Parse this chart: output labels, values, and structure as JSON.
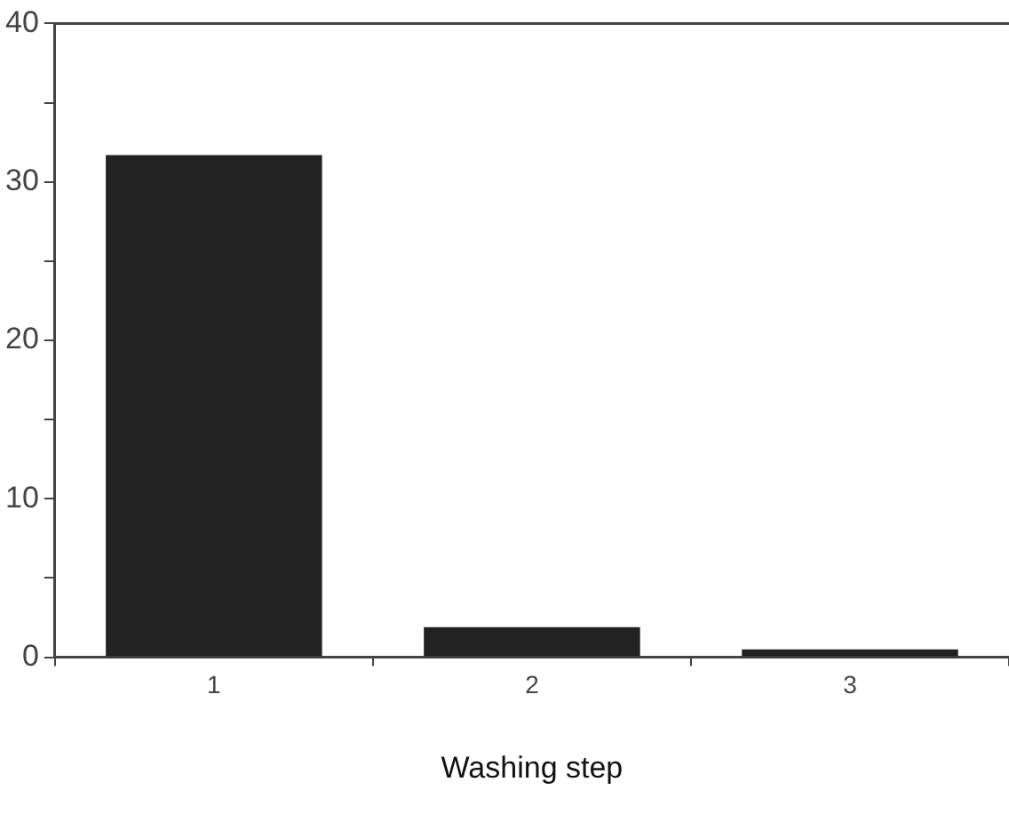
{
  "chart_data": {
    "type": "bar",
    "xlabel": "Washing step",
    "categories": [
      "1",
      "2",
      "3"
    ],
    "values": [
      31.7,
      1.9,
      0.5
    ],
    "color": "#222222",
    "ylim": [
      0,
      40
    ],
    "yticks": [
      0,
      {
        "value": 5,
        "label": null
      },
      10,
      {
        "value": 15,
        "label": null
      },
      20,
      {
        "value": 25,
        "label": null
      },
      30,
      {
        "value": 35,
        "label": null
      },
      40
    ],
    "grid": false,
    "legend": false
  }
}
